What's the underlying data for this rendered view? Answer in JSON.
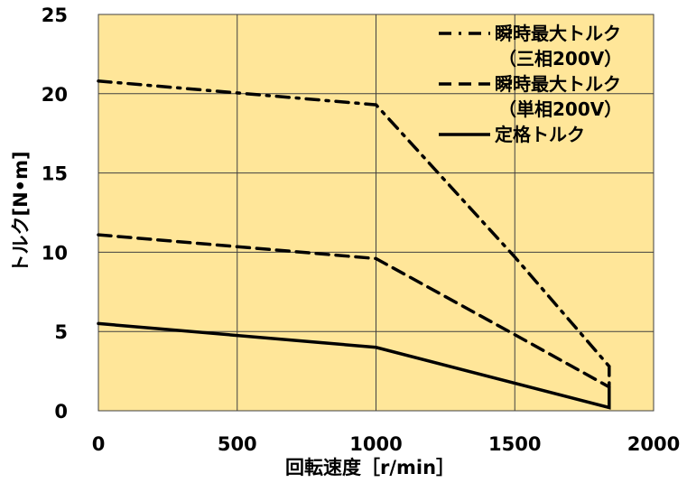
{
  "chart_data": {
    "type": "line",
    "title": "",
    "xlabel": "回転速度［r/min］",
    "ylabel": "トルク[N•m]",
    "xlim": [
      0,
      2000
    ],
    "ylim": [
      0,
      25
    ],
    "xticks": [
      "0",
      "500",
      "1000",
      "1500",
      "2000"
    ],
    "yticks": [
      "0",
      "5",
      "10",
      "15",
      "20",
      "25"
    ],
    "grid": true,
    "legend_position": "top-right",
    "colors": {
      "plot_background": "#FFE699",
      "lines": "#000000",
      "grid": "#404040"
    },
    "series": [
      {
        "name": "瞬時最大トルク（三相200V）",
        "legend_lines": [
          "瞬時最大トルク",
          "（三相200V）"
        ],
        "style": "dash-dot",
        "x": [
          0,
          1000,
          1500,
          1840,
          1840
        ],
        "y": [
          20.8,
          19.3,
          9.7,
          2.8,
          1.5
        ]
      },
      {
        "name": "瞬時最大トルク（単相200V）",
        "legend_lines": [
          "瞬時最大トルク",
          "（単相200V）"
        ],
        "style": "dashed",
        "x": [
          0,
          1000,
          1500,
          1840
        ],
        "y": [
          11.1,
          9.6,
          4.8,
          1.5
        ]
      },
      {
        "name": "定格トルク",
        "legend_lines": [
          "定格トルク"
        ],
        "style": "solid",
        "x": [
          0,
          1000,
          1840,
          1840
        ],
        "y": [
          5.5,
          4.0,
          0.2,
          1.5
        ]
      }
    ]
  }
}
